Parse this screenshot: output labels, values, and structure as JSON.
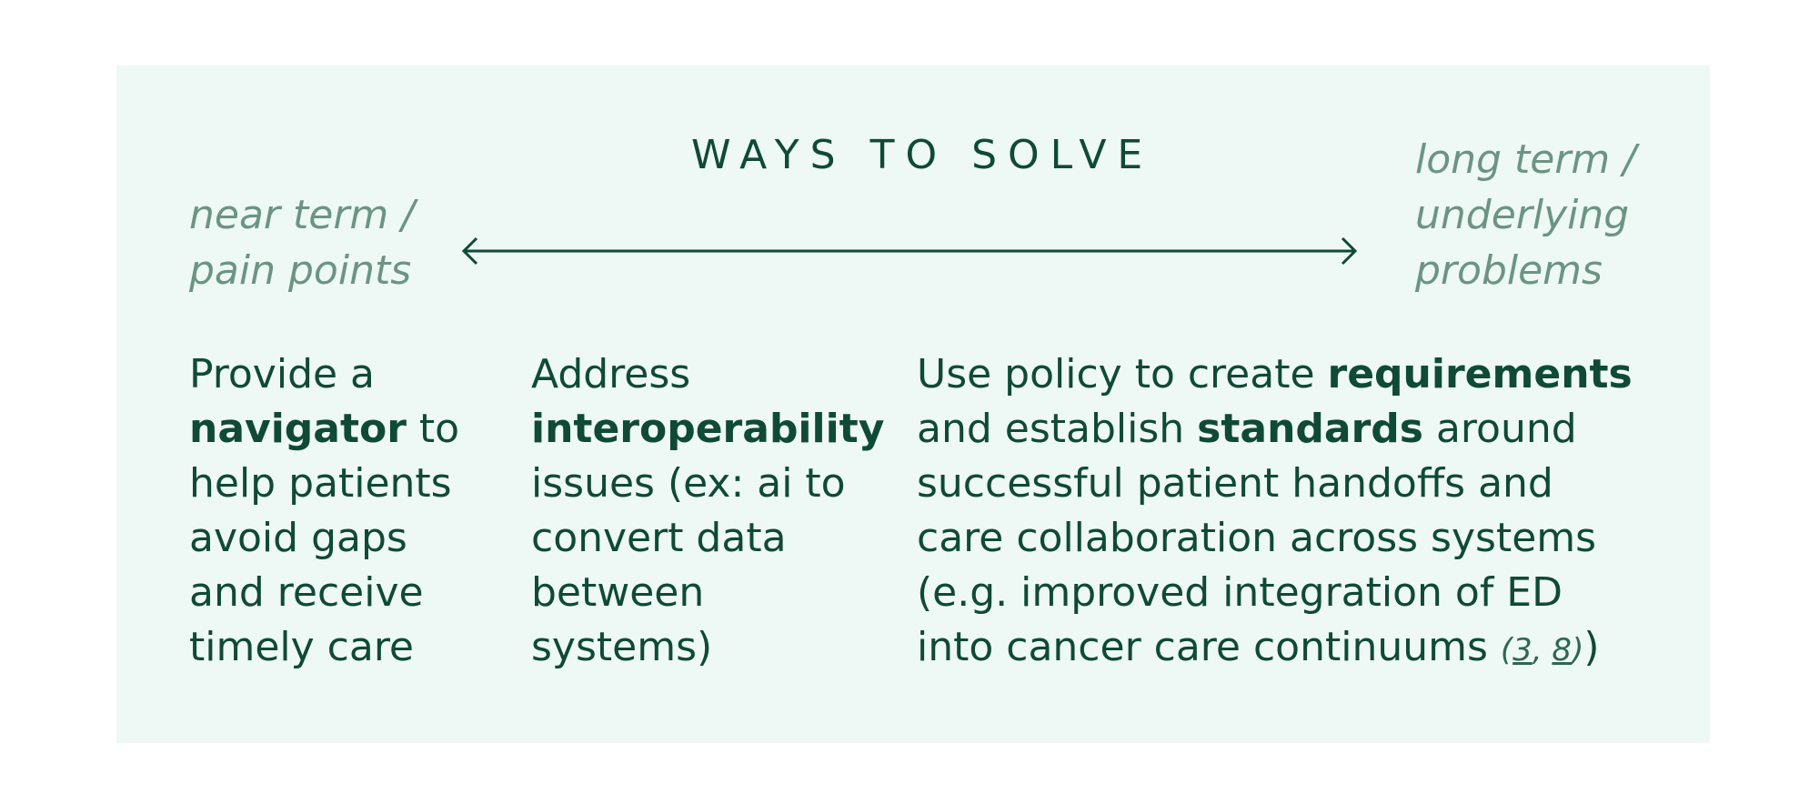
{
  "title": "WAYS TO SOLVE",
  "near_term": [
    "near term /",
    "pain points"
  ],
  "long_term": [
    "long term /",
    "underlying",
    "problems"
  ],
  "columns": [
    {
      "l1": "Provide a",
      "l2_bold": "navigator",
      "l2_rest": " to",
      "l3": "help patients",
      "l4": "avoid gaps",
      "l5": "and receive",
      "l6": "timely care"
    },
    {
      "l1": "Address",
      "l2_bold": "interoperability",
      "l3": "issues (ex: ai to",
      "l4": "convert data",
      "l5": "between",
      "l6": "systems)"
    },
    {
      "l1_pre": "Use policy to create ",
      "l1_bold": "requirements",
      "l2_pre": "and establish ",
      "l2_bold": "standards",
      "l2_post": " around",
      "l3": "successful patient handoffs and",
      "l4": "care collaboration across systems",
      "l5": "(e.g. improved integration of ED",
      "l6_pre": "into cancer care continuums ",
      "ref_open": "(",
      "ref1": "3",
      "ref_sep": ", ",
      "ref2": "8",
      "ref_close": ")",
      "l6_post": ")"
    }
  ],
  "colors": {
    "panel_bg": "#eef8f4",
    "text_dark": "#0f4a36",
    "text_muted": "#6b9484"
  }
}
